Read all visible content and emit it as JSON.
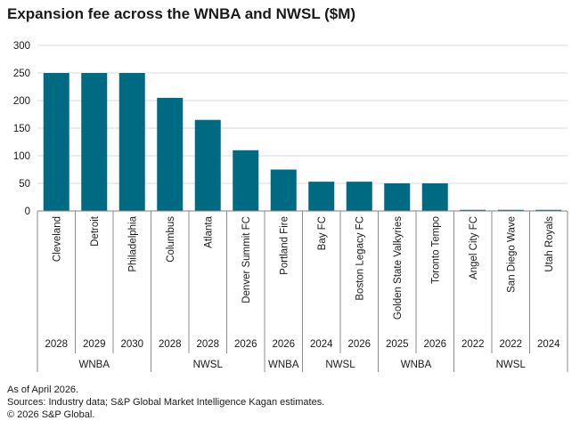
{
  "chart_data": {
    "type": "bar",
    "title": "Expansion fee across the WNBA and NWSL ($M)",
    "categories": [
      "Cleveland",
      "Detroit",
      "Philadelphia",
      "Columbus",
      "Atlanta",
      "Denver Summit FC",
      "Portland Fire",
      "Bay FC",
      "Boston Legacy FC",
      "Golden State Valkyries",
      "Toronto Tempo",
      "Angel City FC",
      "San Diego Wave",
      "Utah Royals"
    ],
    "years": [
      "2028",
      "2029",
      "2030",
      "2028",
      "2028",
      "2026",
      "2026",
      "2024",
      "2026",
      "2025",
      "2026",
      "2022",
      "2022",
      "2024"
    ],
    "leagues": [
      {
        "name": "WNBA",
        "count": 3
      },
      {
        "name": "NWSL",
        "count": 3
      },
      {
        "name": "WNBA",
        "count": 1
      },
      {
        "name": "NWSL",
        "count": 2
      },
      {
        "name": "WNBA",
        "count": 2
      },
      {
        "name": "NWSL",
        "count": 3
      }
    ],
    "values": [
      250,
      250,
      250,
      205,
      165,
      110,
      75,
      53,
      53,
      50,
      50,
      2,
      2,
      2
    ],
    "ylim": [
      0,
      300
    ],
    "yticks": [
      "0",
      "50",
      "100",
      "150",
      "200",
      "250",
      "300"
    ],
    "grid": true,
    "bar_color": "#006a82"
  },
  "footnotes": [
    "As of April 2026.",
    "Sources: Industry data; S&P Global Market Intelligence Kagan estimates.",
    "© 2026 S&P Global."
  ]
}
